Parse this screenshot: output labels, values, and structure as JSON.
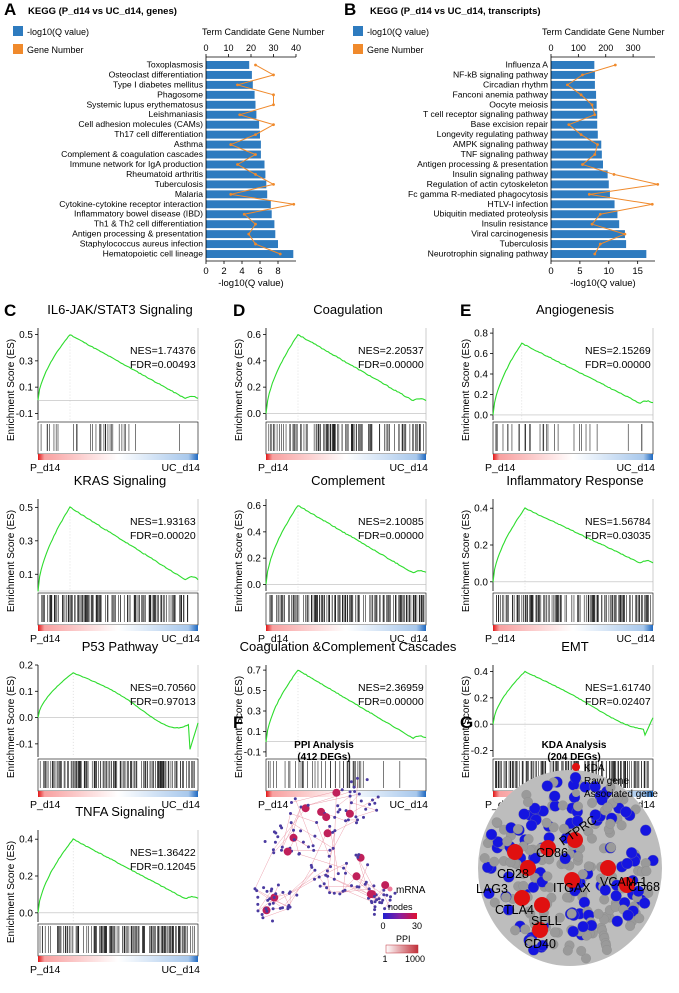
{
  "panels": {
    "A": "A",
    "B": "B",
    "C": "C",
    "D": "D",
    "E": "E",
    "F": "F",
    "G": "G"
  },
  "kegg_common": {
    "legend_q": "-log10(Q value)",
    "legend_gene": "Gene Number",
    "top_axis_label": "Term Candidate Gene Number",
    "bottom_axis_label": "-log10(Q value)",
    "bar_color": "#2e7bbf",
    "line_color": "#f08a2c"
  },
  "chart_data": [
    {
      "id": "A",
      "type": "bar",
      "title": "KEGG (P_d14 vs UC_d14, genes)",
      "categories": [
        "Toxoplasmosis",
        "Osteoclast differentiation",
        "Type Ⅰ diabetes mellitus",
        "Phagosome",
        "Systemic lupus erythematosus",
        "Leishmaniasis",
        "Cell adhesion molecules (CAMs)",
        "Th17 cell differentiation",
        "Asthma",
        "Complement & coagulation cascades",
        "Immune network for IgA production",
        "Rheumatoid arthritis",
        "Tuberculosis",
        "Malaria",
        "Cytokine-cytokine receptor interaction",
        "Inflammatory bowel disease (IBD)",
        "Th1 & Th2 cell differentiation",
        "Antigen processing & presentation",
        "Staphylococcus aureus infection",
        "Hematopoietic cell lineage"
      ],
      "values": [
        4.8,
        5.1,
        5.2,
        5.4,
        5.5,
        5.6,
        5.9,
        6.0,
        6.1,
        6.1,
        6.5,
        6.6,
        6.7,
        6.8,
        7.2,
        7.3,
        7.6,
        7.7,
        8.0,
        9.7
      ],
      "gene_number": [
        22,
        30,
        14,
        30,
        30,
        15,
        30,
        22,
        11,
        22,
        14,
        22,
        30,
        11,
        39,
        17,
        22,
        19,
        22,
        33
      ],
      "xlim": [
        0,
        10
      ],
      "xticks": [
        "0",
        "2",
        "4",
        "6",
        "8"
      ],
      "top_lim": [
        0,
        40
      ],
      "top_ticks": [
        "0",
        "10",
        "20",
        "30",
        "40"
      ]
    },
    {
      "id": "B",
      "type": "bar",
      "title": "KEGG (P_d14 vs UC_d14, transcripts)",
      "categories": [
        "Influenza A",
        "NF-kB signaling pathway",
        "Circadian rhythm",
        "Fanconi anemia pathway",
        "Oocyte meiosis",
        "T cell receptor signaling pathway",
        "Base excision repair",
        "Longevity regulating pathway",
        "AMPK signaling pathway",
        "TNF signaling pathway",
        "Antigen processing & presentation",
        "Insulin signaling pathway",
        "Regulation of actin cytoskeleton",
        "Fc gamma R-mediated phagocytosis",
        "HTLV-I infection",
        "Ubiquitin mediated proteolysis",
        "Insulin resistance",
        "Viral carcinogenesis",
        "Tuberculosis",
        "Neurotrophin signaling pathway"
      ],
      "values": [
        7.5,
        7.6,
        7.6,
        7.8,
        7.9,
        8.0,
        8.0,
        8.1,
        8.7,
        8.8,
        9.0,
        9.8,
        10.0,
        10.2,
        11.0,
        11.5,
        11.8,
        12.8,
        13.0,
        16.5
      ],
      "gene_number": [
        235,
        115,
        60,
        110,
        150,
        160,
        65,
        110,
        170,
        160,
        115,
        230,
        390,
        140,
        370,
        180,
        150,
        270,
        180,
        160
      ],
      "xlim": [
        0,
        18
      ],
      "xticks": [
        "0",
        "5",
        "10",
        "15"
      ],
      "top_lim": [
        0,
        380
      ],
      "top_ticks": [
        "0",
        "100",
        "200",
        "300"
      ]
    },
    {
      "id": "C1",
      "type": "line",
      "title": "IL6-JAK/STAT3 Signaling",
      "nes": "NES=1.74376",
      "fdr": "FDR=0.00493",
      "ylim": [
        -0.15,
        0.55
      ],
      "yticks": [
        "0.5",
        "0.3",
        "0.1",
        "-0.1"
      ],
      "yvals": [
        0.5,
        0.3,
        0.1,
        -0.1
      ],
      "peak": 0.5,
      "peak_pos": 0.2,
      "end": -0.04,
      "dip": 0,
      "hits": 30,
      "density": "sparse"
    },
    {
      "id": "C2",
      "type": "line",
      "title": "KRAS Signaling",
      "nes": "NES=1.93163",
      "fdr": "FDR=0.00020",
      "ylim": [
        0,
        0.55
      ],
      "yticks": [
        "0.5",
        "0.3",
        "0.1"
      ],
      "yvals": [
        0.5,
        0.3,
        0.1
      ],
      "peak": 0.5,
      "peak_pos": 0.2,
      "end": 0.02,
      "dip": 0,
      "hits": 140,
      "density": "dense"
    },
    {
      "id": "C3",
      "type": "line",
      "title": "P53 Pathway",
      "nes": "NES=0.70560",
      "fdr": "FDR=0.97013",
      "ylim": [
        -0.15,
        0.2
      ],
      "yticks": [
        "0.2",
        "0.1",
        "0.0",
        "-0.1"
      ],
      "yvals": [
        0.2,
        0.1,
        0.0,
        -0.1
      ],
      "peak": 0.17,
      "peak_pos": 0.22,
      "end": -0.02,
      "dip": -0.13,
      "hits": 160,
      "density": "dense"
    },
    {
      "id": "C4",
      "type": "line",
      "title": "TNFA Signaling",
      "nes": "NES=1.36422",
      "fdr": "FDR=0.12045",
      "ylim": [
        -0.05,
        0.45
      ],
      "yticks": [
        "0.4",
        "0.2",
        "0.0"
      ],
      "yvals": [
        0.4,
        0.2,
        0.0
      ],
      "peak": 0.4,
      "peak_pos": 0.22,
      "end": 0.04,
      "dip": 0,
      "hits": 150,
      "density": "dense"
    },
    {
      "id": "D1",
      "type": "line",
      "title": "Coagulation",
      "nes": "NES=2.20537",
      "fdr": "FDR=0.00000",
      "ylim": [
        -0.05,
        0.65
      ],
      "yticks": [
        "0.6",
        "0.4",
        "0.2",
        "0.0"
      ],
      "yvals": [
        0.6,
        0.4,
        0.2,
        0.0
      ],
      "peak": 0.6,
      "peak_pos": 0.2,
      "end": 0.04,
      "dip": 0,
      "hits": 120,
      "density": "dense"
    },
    {
      "id": "D2",
      "type": "line",
      "title": "Complement",
      "nes": "NES=2.10085",
      "fdr": "FDR=0.00000",
      "ylim": [
        -0.05,
        0.65
      ],
      "yticks": [
        "0.6",
        "0.4",
        "0.2",
        "0.0"
      ],
      "yvals": [
        0.6,
        0.4,
        0.2,
        0.0
      ],
      "peak": 0.6,
      "peak_pos": 0.2,
      "end": 0.03,
      "dip": 0,
      "hits": 150,
      "density": "dense"
    },
    {
      "id": "D3",
      "type": "line",
      "title": "Coagulation &Complement Cascades",
      "nes": "NES=2.36959",
      "fdr": "FDR=0.00000",
      "ylim": [
        -0.15,
        0.75
      ],
      "yticks": [
        "0.7",
        "0.5",
        "0.3",
        "0.1",
        "-0.1"
      ],
      "yvals": [
        0.7,
        0.5,
        0.3,
        0.1,
        -0.1
      ],
      "peak": 0.7,
      "peak_pos": 0.2,
      "end": -0.04,
      "dip": 0,
      "hits": 40,
      "density": "sparse"
    },
    {
      "id": "E1",
      "type": "line",
      "title": "Angiogenesis",
      "nes": "NES=2.15269",
      "fdr": "FDR=0.00000",
      "ylim": [
        -0.05,
        0.85
      ],
      "yticks": [
        "0.8",
        "0.6",
        "0.4",
        "0.2",
        "0.0"
      ],
      "yvals": [
        0.8,
        0.6,
        0.4,
        0.2,
        0.0
      ],
      "peak": 0.7,
      "peak_pos": 0.18,
      "end": 0.05,
      "dip": 0,
      "hits": 30,
      "density": "sparse"
    },
    {
      "id": "E2",
      "type": "line",
      "title": "Inflammatory Response",
      "nes": "NES=1.56784",
      "fdr": "FDR=0.03035",
      "ylim": [
        -0.05,
        0.45
      ],
      "yticks": [
        "0.4",
        "0.2",
        "0.0"
      ],
      "yvals": [
        0.4,
        0.2,
        0.0
      ],
      "peak": 0.4,
      "peak_pos": 0.2,
      "end": 0.07,
      "dip": 0,
      "hits": 150,
      "density": "dense"
    },
    {
      "id": "E3",
      "type": "line",
      "title": "EMT",
      "nes": "NES=1.61740",
      "fdr": "FDR=0.02407",
      "ylim": [
        -0.25,
        0.45
      ],
      "yticks": [
        "0.4",
        "0.2",
        "0.0",
        "-0.2"
      ],
      "yvals": [
        0.4,
        0.2,
        0.0,
        -0.2
      ],
      "peak": 0.4,
      "peak_pos": 0.2,
      "end": 0.05,
      "dip": -0.1,
      "hits": 160,
      "density": "dense"
    }
  ],
  "gsea_common": {
    "ylabel": "Enrichment Score (ES)",
    "left_label": "P_d14",
    "right_label": "UC_d14",
    "curve_color": "#2ddc2d"
  },
  "ppi": {
    "title": "PPI Analysis",
    "subtitle": "(412 DEGs)",
    "legend_mrna": "mRNA",
    "legend_nodes": "nodes",
    "nodes_min": "0",
    "nodes_max": "30",
    "legend_ppi": "PPI",
    "ppi_min": "1",
    "ppi_max": "1000"
  },
  "kda": {
    "title": "KDA Analysis",
    "subtitle": "(204 DEGs)",
    "legend": [
      "KDA",
      "Raw gene",
      "Associated gene"
    ],
    "legend_colors": [
      "#e01010",
      "#1515e0",
      "#9a9a9a"
    ],
    "genes": [
      "LAG3",
      "CD28",
      "CD86",
      "PTPRC",
      "VCAM-1",
      "CD68",
      "ITGAX",
      "CTLA4",
      "SELL",
      "CD40"
    ]
  }
}
